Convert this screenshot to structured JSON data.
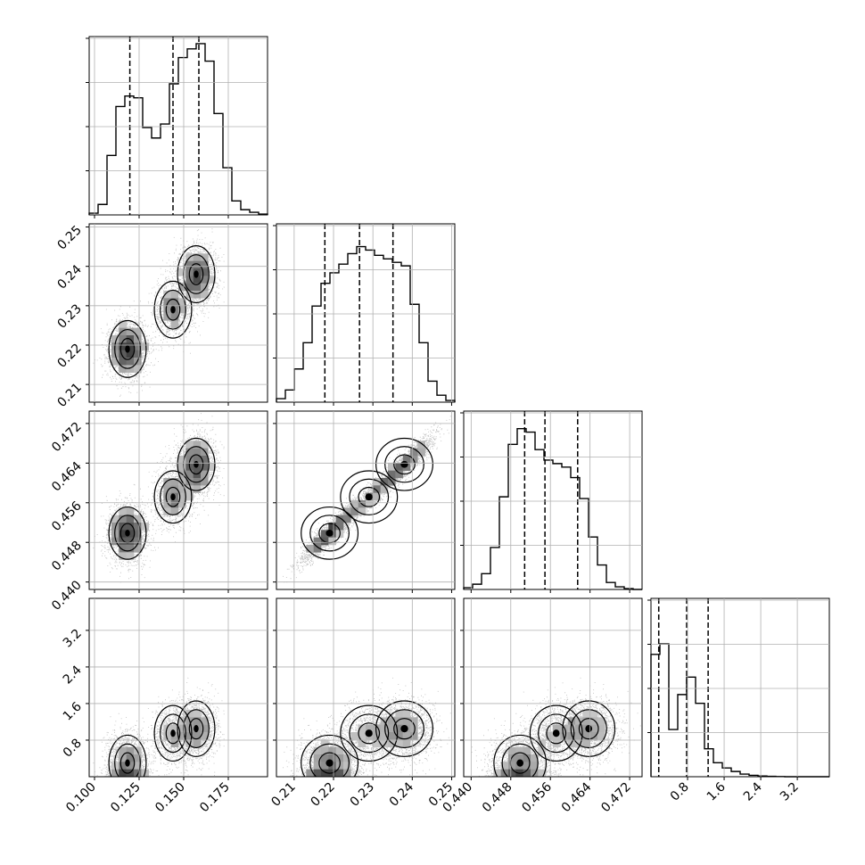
{
  "chart_data": {
    "type": "corner",
    "grid": true,
    "variables": [
      {
        "key": "p0",
        "range": [
          0.097,
          0.197
        ],
        "ticks": [
          0.1,
          0.125,
          0.15,
          0.175
        ],
        "tick_labels": [
          "0.100",
          "0.125",
          "0.150",
          "0.175"
        ],
        "quantiles": [
          0.1198,
          0.144,
          0.1585
        ],
        "histogram": {
          "y_max": 1.0,
          "values": [
            0.01,
            0.06,
            0.34,
            0.62,
            0.68,
            0.67,
            0.5,
            0.44,
            0.52,
            0.75,
            0.9,
            0.95,
            0.98,
            0.88,
            0.58,
            0.27,
            0.08,
            0.03,
            0.015,
            0.005
          ]
        },
        "modes": []
      },
      {
        "key": "p1",
        "range": [
          0.2055,
          0.2508
        ],
        "ticks": [
          0.21,
          0.22,
          0.23,
          0.24,
          0.25
        ],
        "tick_labels": [
          "0.21",
          "0.22",
          "0.23",
          "0.24",
          "0.25"
        ],
        "quantiles": [
          0.2178,
          0.2266,
          0.2351
        ],
        "histogram": {
          "y_max": 1.0,
          "values": [
            0.02,
            0.07,
            0.19,
            0.34,
            0.55,
            0.68,
            0.74,
            0.79,
            0.85,
            0.89,
            0.87,
            0.84,
            0.82,
            0.8,
            0.78,
            0.56,
            0.34,
            0.12,
            0.04,
            0.01
          ]
        },
        "modes": []
      },
      {
        "key": "p2",
        "range": [
          0.4385,
          0.4745
        ],
        "ticks": [
          0.44,
          0.448,
          0.456,
          0.464,
          0.472
        ],
        "tick_labels": [
          "0.440",
          "0.448",
          "0.456",
          "0.464",
          "0.472"
        ],
        "quantiles": [
          0.4508,
          0.4549,
          0.4615
        ],
        "histogram": {
          "y_max": 1.0,
          "values": [
            0.01,
            0.03,
            0.09,
            0.24,
            0.53,
            0.83,
            0.92,
            0.9,
            0.8,
            0.74,
            0.72,
            0.7,
            0.64,
            0.52,
            0.3,
            0.14,
            0.04,
            0.015,
            0.005,
            0.0
          ]
        },
        "modes": [
          {
            "x": 0.4518,
            "sd": 0.0016,
            "w": 1.0
          },
          {
            "x": 0.46,
            "sd": 0.0024,
            "w": 0.62
          }
        ]
      },
      {
        "key": "p3",
        "range": [
          0.0,
          3.9
        ],
        "ticks": [
          0.8,
          1.6,
          2.4,
          3.2
        ],
        "tick_labels": [
          "0.8",
          "1.6",
          "2.4",
          "3.2"
        ],
        "quantiles": [
          0.17,
          0.78,
          1.25
        ],
        "histogram": {
          "y_max": 1.0,
          "values": [
            0.7,
            0.76,
            0.27,
            0.47,
            0.57,
            0.42,
            0.16,
            0.08,
            0.05,
            0.03,
            0.015,
            0.008,
            0.004,
            0.002,
            0.001,
            0.0,
            0.0,
            0.0,
            0.0,
            0.0
          ]
        },
        "modes": []
      }
    ],
    "joint_modes": [
      {
        "p0": 0.1185,
        "p1": 0.219,
        "p3": 0.3,
        "w": 0.42
      },
      {
        "p0": 0.144,
        "p1": 0.229,
        "p3": 0.95,
        "w": 0.22
      },
      {
        "p0": 0.157,
        "p1": 0.238,
        "p3": 1.05,
        "w": 0.36
      }
    ],
    "joint_spread": {
      "p0": 0.0055,
      "p1": 0.0038,
      "p3": 0.32
    },
    "p2_relation": {
      "base": 0.29,
      "slope": 0.73,
      "sd": 0.0012
    },
    "scatter_points": 5000,
    "contour_levels": [
      0.12,
      0.4,
      0.67,
      0.88
    ]
  }
}
